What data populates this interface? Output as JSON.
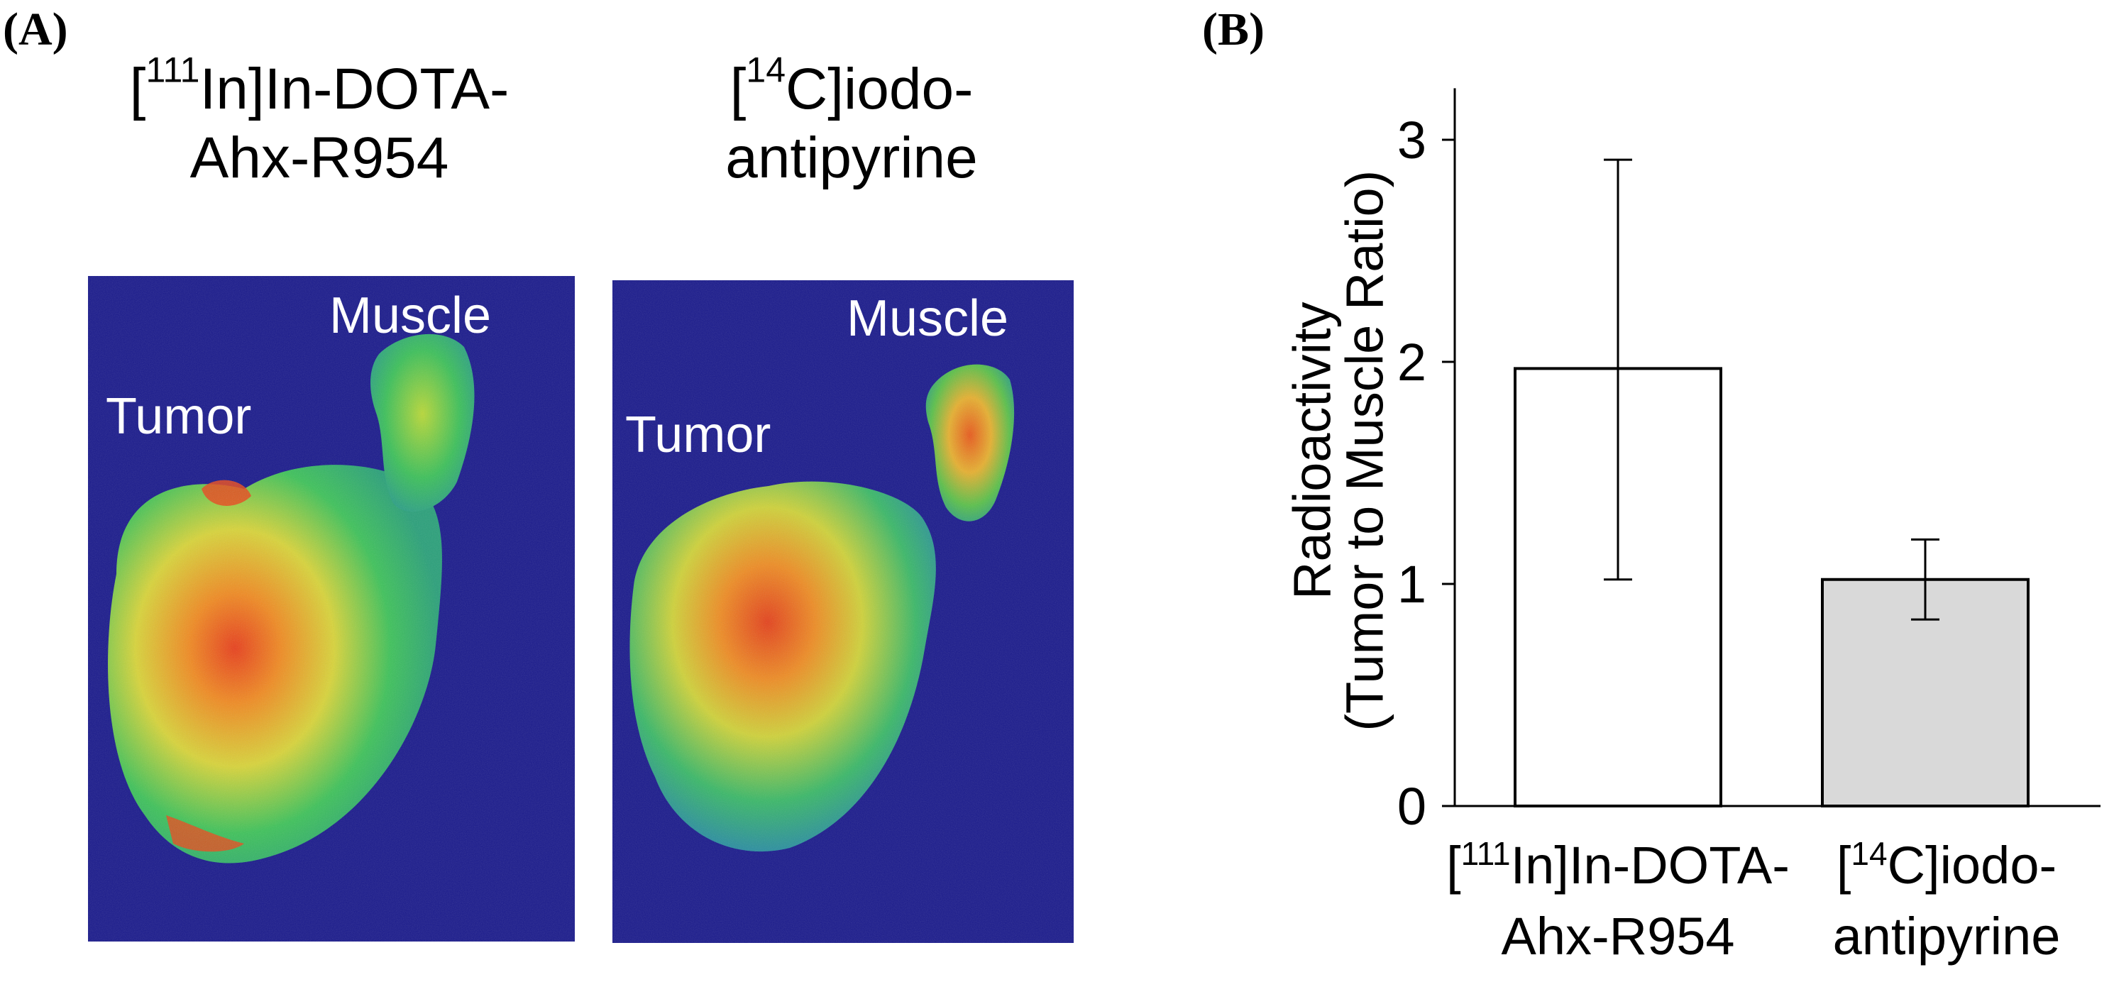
{
  "panels": {
    "a": {
      "label": "(A)",
      "images": [
        {
          "title_sup": "111",
          "title_line1": "]In-DOTA-",
          "title_line2": "Ahx-R954",
          "label_tumor": "Tumor",
          "label_muscle": "Muscle"
        },
        {
          "title_sup": "14",
          "title_line1": "C]iodo-",
          "title_line2": "antipyrine",
          "label_tumor": "Tumor",
          "label_muscle": "Muscle"
        }
      ]
    },
    "b": {
      "label": "(B)"
    }
  },
  "chart_data": {
    "type": "bar",
    "ylabel_line1": "Radioactivity",
    "ylabel_line2": "(Tumor to Muscle Ratio)",
    "ylim": [
      0,
      3.2
    ],
    "yticks": [
      0,
      1,
      2,
      3
    ],
    "categories": [
      {
        "pre": "[",
        "sup": "111",
        "post": "In]In-DOTA-",
        "line2": "Ahx-R954"
      },
      {
        "pre": "[",
        "sup": "14",
        "post": "C]iodo-",
        "line2": "antipyrine"
      }
    ],
    "values": [
      1.97,
      1.02
    ],
    "error_upper": [
      2.91,
      1.2
    ],
    "error_lower": [
      1.02,
      0.84
    ],
    "bar_fill": [
      "#ffffff",
      "#d9d9d9"
    ],
    "grid": false
  },
  "colors": {
    "autorad_bg": "#1a1a8c",
    "tumor_core": "#e64a1e",
    "tissue_green": "#39c060",
    "tissue_yellow": "#dcd23c"
  }
}
